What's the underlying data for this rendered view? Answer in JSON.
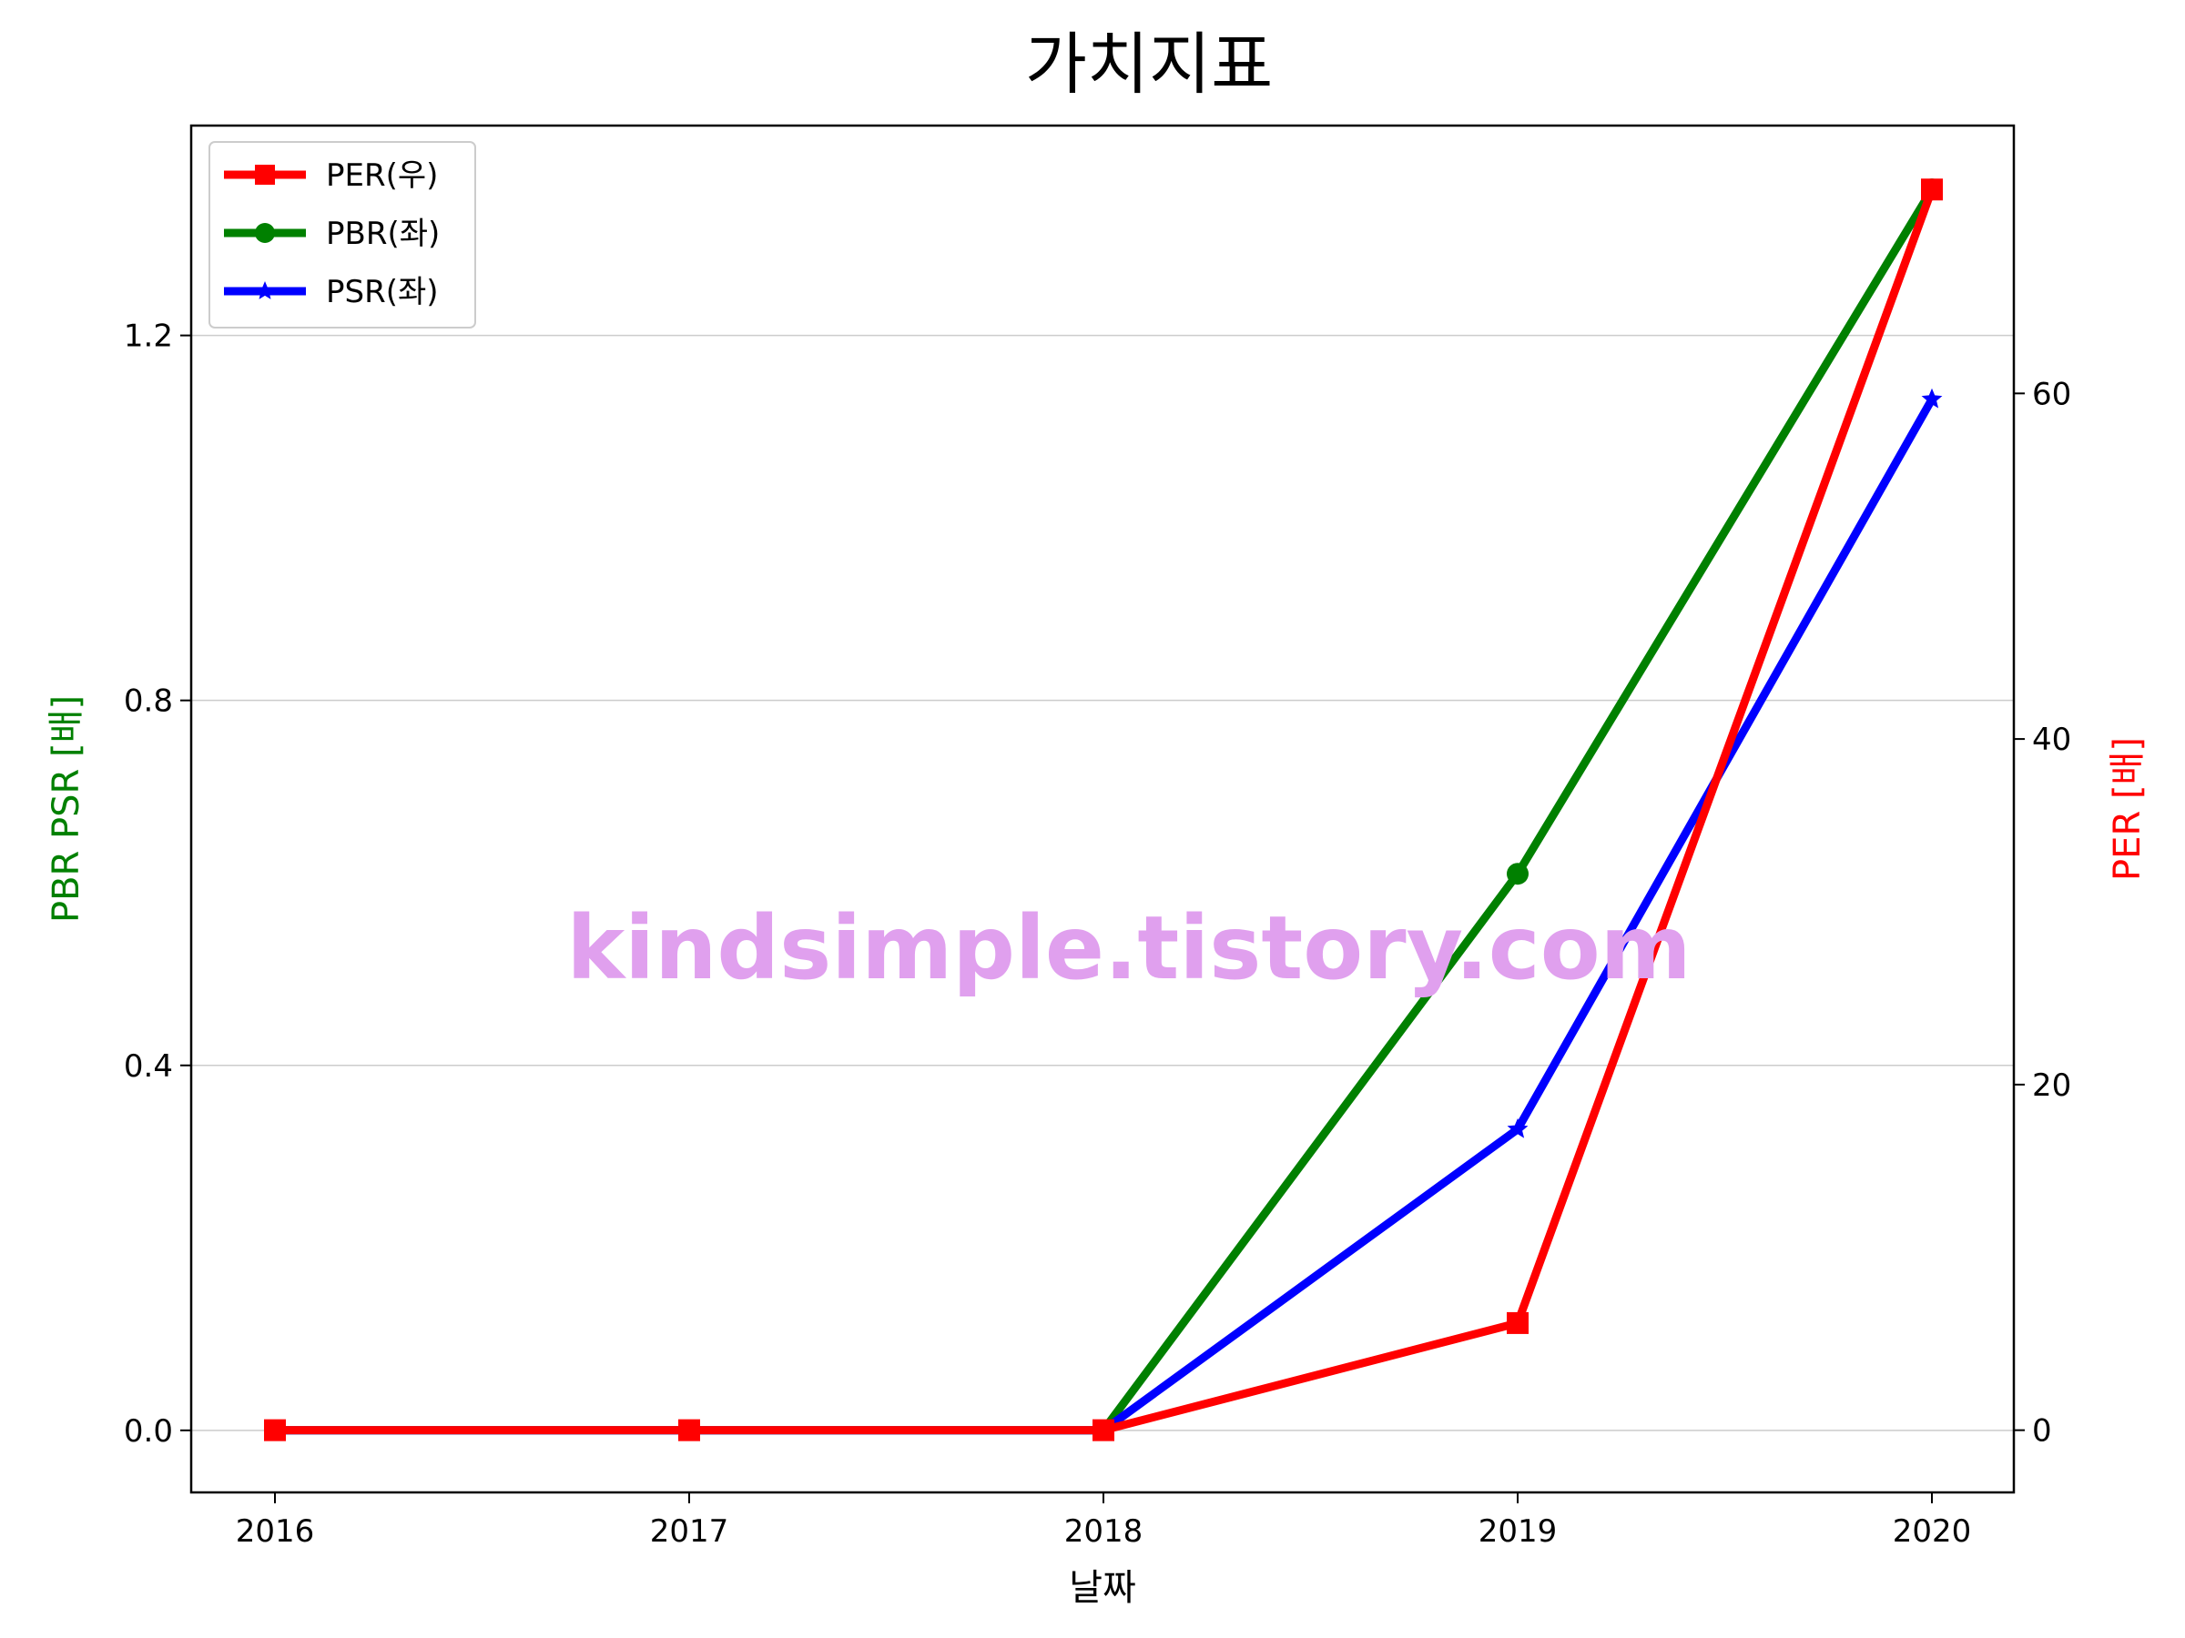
{
  "chart_data": {
    "type": "line",
    "title": "가치지표",
    "xlabel": "날짜",
    "ylabel_left": "PBR PSR [배]",
    "ylabel_right": "PER [배]",
    "categories": [
      "2016",
      "2017",
      "2018",
      "2019",
      "2020"
    ],
    "left_ticks": [
      "0.0",
      "0.4",
      "0.8",
      "1.2"
    ],
    "right_ticks": [
      "0",
      "20",
      "40",
      "60"
    ],
    "ylim_left": [
      -0.068,
      1.43
    ],
    "ylim_right": [
      -3.6,
      75.5
    ],
    "grid": "horizontal",
    "legend_position": "top-left",
    "series": [
      {
        "name": "PER(우)",
        "axis": "right",
        "color": "#ff0000",
        "marker": "square",
        "values": [
          0,
          0,
          0,
          6.2,
          71.8
        ]
      },
      {
        "name": "PBR(좌)",
        "axis": "left",
        "color": "#008000",
        "marker": "circle",
        "values": [
          0,
          0,
          0,
          0.61,
          1.36
        ]
      },
      {
        "name": "PSR(좌)",
        "axis": "left",
        "color": "#0000ff",
        "marker": "star",
        "values": [
          0,
          0,
          0,
          0.33,
          1.13
        ]
      }
    ],
    "watermark": "kindsimple.tistory.com",
    "colors": {
      "left_axis_label": "#008000",
      "right_axis_label": "#ff0000",
      "watermark": "#e0a0ee"
    }
  }
}
